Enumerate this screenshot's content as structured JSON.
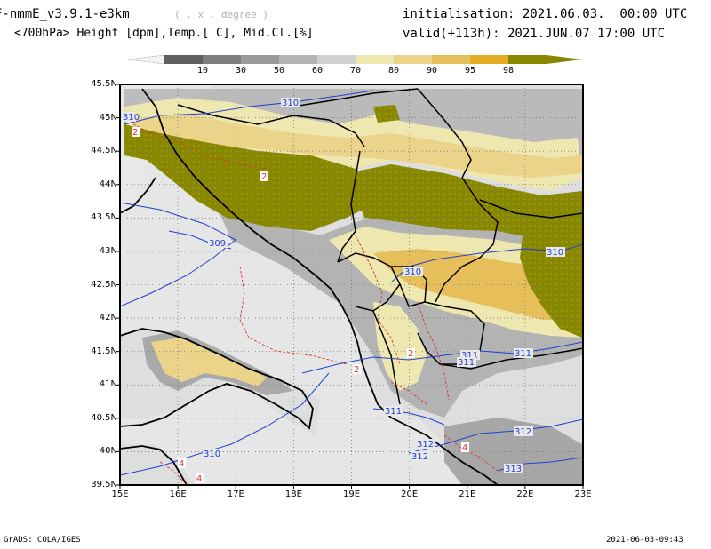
{
  "header": {
    "model": "F-nmmE_v3.9.1-e3km",
    "grid": "( . x . degree )",
    "fields": "<700hPa> Height [dpm],Temp.[ C], Mid.Cl.[%]",
    "init": "initialisation: 2021.06.03.  00:00 UTC",
    "valid": "valid(+113h): 2021.JUN.07 17:00 UTC"
  },
  "colorbar": {
    "labels": [
      "10",
      "30",
      "50",
      "60",
      "70",
      "80",
      "90",
      "95",
      "98"
    ],
    "colors": [
      "#606060",
      "#7e7e7e",
      "#9a9a9a",
      "#b4b4b4",
      "#d0d0d0",
      "#efe7b0",
      "#ebd38a",
      "#e6be5a",
      "#e5ac25",
      "#878700"
    ]
  },
  "axes": {
    "lat_labels": [
      "45.5N",
      "45N",
      "44.5N",
      "44N",
      "43.5N",
      "43N",
      "42.5N",
      "42N",
      "41.5N",
      "41N",
      "40.5N",
      "40N",
      "39.5N"
    ],
    "lon_labels": [
      "15E",
      "16E",
      "17E",
      "18E",
      "19E",
      "20E",
      "21E",
      "22E",
      "23E"
    ]
  },
  "contours": {
    "height_labels": [
      "310",
      "310",
      "309",
      "310",
      "310",
      "311",
      "311",
      "311",
      "311",
      "312",
      "312",
      "312",
      "313",
      "310"
    ],
    "temp_labels": [
      "2",
      "2",
      "2",
      "2",
      "4",
      "4",
      "4"
    ]
  },
  "footer": {
    "left": "GrADS: COLA/IGES",
    "right": "2021-06-03-09:43"
  }
}
